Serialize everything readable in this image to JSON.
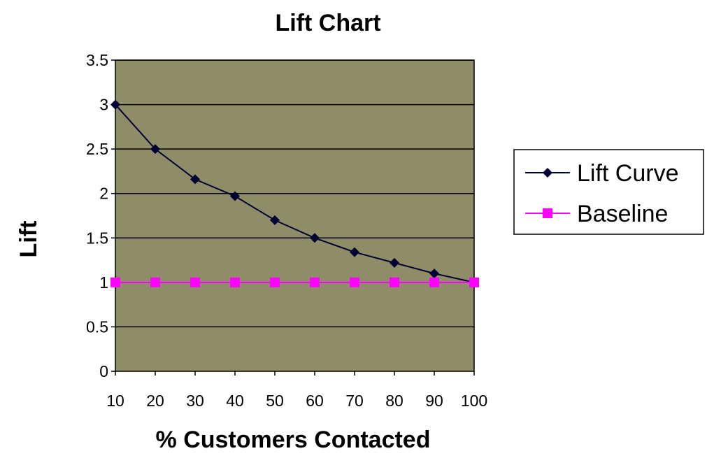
{
  "chart_data": {
    "type": "line",
    "title": "Lift Chart",
    "xlabel": "% Customers Contacted",
    "ylabel": "Lift",
    "categories": [
      "10",
      "20",
      "30",
      "40",
      "50",
      "60",
      "70",
      "80",
      "90",
      "100"
    ],
    "ylim": [
      0,
      3.5
    ],
    "yticks": [
      "0",
      "0.5",
      "1",
      "1.5",
      "2",
      "2.5",
      "3",
      "3.5"
    ],
    "grid": true,
    "legend_position": "right",
    "plot_background": "#8f8c68",
    "series": [
      {
        "name": "Lift Curve",
        "color": "#000033",
        "marker": "diamond",
        "values": [
          3.0,
          2.5,
          2.16,
          1.97,
          1.7,
          1.5,
          1.34,
          1.22,
          1.1,
          1.0
        ]
      },
      {
        "name": "Baseline",
        "color": "#ff00ff",
        "marker": "square",
        "values": [
          1,
          1,
          1,
          1,
          1,
          1,
          1,
          1,
          1,
          1
        ]
      }
    ]
  }
}
